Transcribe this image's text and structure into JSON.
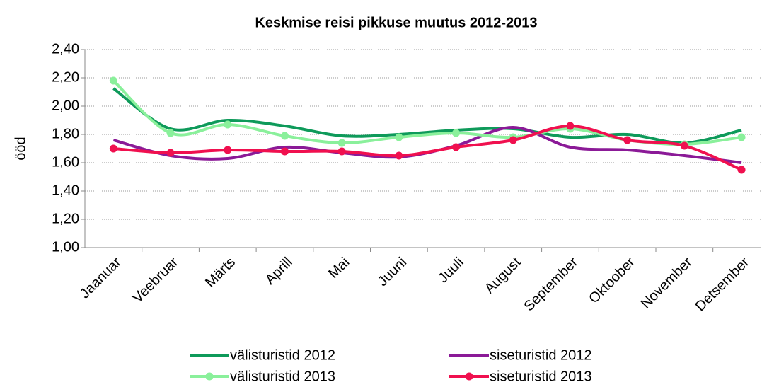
{
  "chart_data": {
    "type": "line",
    "title": "Keskmise reisi pikkuse muutus 2012-2013",
    "ylabel": "ööd",
    "categories": [
      "Jaanuar",
      "Veebruar",
      "Märts",
      "Aprill",
      "Mai",
      "Juuni",
      "Juuli",
      "August",
      "September",
      "Oktoober",
      "November",
      "Detsember"
    ],
    "series": [
      {
        "name": "välisturistid 2012",
        "color": "#0e9a5a",
        "markers": false,
        "values": [
          2.125,
          1.84,
          1.9,
          1.86,
          1.79,
          1.8,
          1.83,
          1.84,
          1.78,
          1.8,
          1.74,
          1.83
        ]
      },
      {
        "name": "siseturistid 2012",
        "color": "#8b1a97",
        "markers": false,
        "values": [
          1.76,
          1.65,
          1.63,
          1.71,
          1.67,
          1.64,
          1.72,
          1.85,
          1.71,
          1.69,
          1.65,
          1.6
        ]
      },
      {
        "name": "välisturistid 2013",
        "color": "#8af09b",
        "markers": true,
        "values": [
          2.18,
          1.81,
          1.87,
          1.79,
          1.74,
          1.78,
          1.81,
          1.78,
          1.84,
          1.76,
          1.73,
          1.78
        ]
      },
      {
        "name": "siseturistid 2013",
        "color": "#f0104f",
        "markers": true,
        "values": [
          1.7,
          1.67,
          1.69,
          1.68,
          1.68,
          1.65,
          1.71,
          1.76,
          1.86,
          1.76,
          1.72,
          1.55
        ]
      }
    ],
    "ylim": [
      1.0,
      2.4
    ],
    "yticks": [
      {
        "value": 1.0,
        "label": "1,00"
      },
      {
        "value": 1.2,
        "label": "1,20"
      },
      {
        "value": 1.4,
        "label": "1,40"
      },
      {
        "value": 1.6,
        "label": "1,60"
      },
      {
        "value": 1.8,
        "label": "1,80"
      },
      {
        "value": 2.0,
        "label": "2,00"
      },
      {
        "value": 2.2,
        "label": "2,20"
      },
      {
        "value": 2.4,
        "label": "2,40"
      }
    ],
    "grid": true,
    "smooth": true,
    "legend": "bottom"
  }
}
